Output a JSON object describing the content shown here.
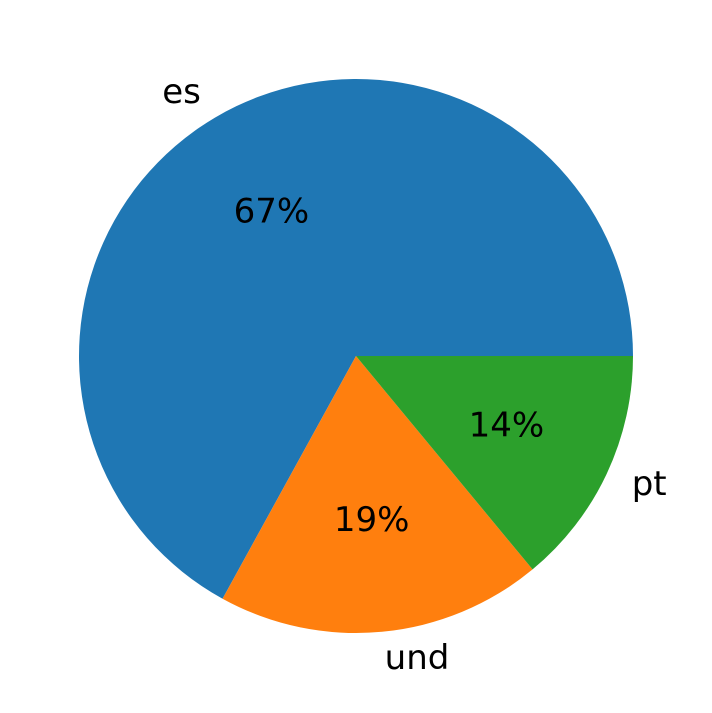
{
  "chart_data": {
    "type": "pie",
    "categories": [
      "es",
      "und",
      "pt"
    ],
    "values": [
      67,
      19,
      14
    ],
    "value_labels": [
      "67%",
      "19%",
      "14%"
    ],
    "colors": [
      "#1f77b4",
      "#ff7f0e",
      "#2ca02c"
    ]
  }
}
